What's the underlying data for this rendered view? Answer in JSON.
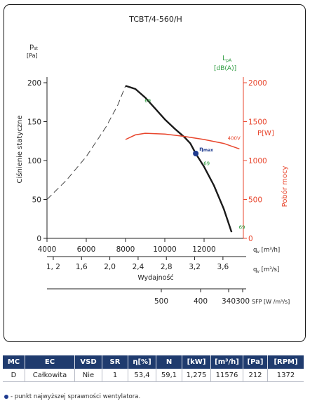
{
  "chart_data": {
    "type": "line",
    "title": "TCBT/4-560/H",
    "left_axis": {
      "unit_line1": "p",
      "unit_sub": "st",
      "unit_line2": "[Pa]",
      "label": "Ciśnienie statyczne",
      "ylim": [
        0,
        200
      ],
      "ticks": [
        0,
        50,
        100,
        150,
        200
      ],
      "tick_labels": [
        "0",
        "50",
        "100",
        "150",
        "200"
      ]
    },
    "right_axis": {
      "unit": "P[W]",
      "label": "Pobór mocy",
      "ylim": [
        0,
        2000
      ],
      "ticks": [
        0,
        500,
        1000,
        1500,
        2000
      ],
      "tick_labels": [
        "0",
        "500",
        "1000",
        "1500",
        "2000"
      ]
    },
    "x_axis_m3h": {
      "xlim": [
        4000,
        14000
      ],
      "ticks": [
        4000,
        6000,
        8000,
        10000,
        12000
      ],
      "tick_labels": [
        "4000",
        "6000",
        "8000",
        "10000",
        "12000"
      ],
      "unit_q": "q",
      "unit_sub": "v",
      "unit_rest": " [m³/h]"
    },
    "x_axis_m3s": {
      "ticks": [
        1.2,
        1.6,
        2.0,
        2.4,
        2.8,
        3.2,
        3.6
      ],
      "tick_labels": [
        "1, 2",
        "1,6",
        "2,0",
        "2,4",
        "2,8",
        "3,2",
        "3,6"
      ],
      "unit_q": "q",
      "unit_sub": "v",
      "unit_rest": " [m³/s]",
      "label": "Wydajność"
    },
    "sfp_axis": {
      "values": [
        500,
        400,
        340,
        300
      ],
      "tick_labels": [
        "500",
        "400",
        "340",
        "300"
      ],
      "label": "SFP [W /m³/s]"
    },
    "lpa_label_line1": "L",
    "lpa_label_sub": "pA",
    "lpa_label_line2": "[dB(A)]",
    "series": [
      {
        "name": "pressure",
        "x": [
          8000,
          8500,
          9000,
          9500,
          10000,
          10500,
          11000,
          11300,
          11576,
          12000,
          12500,
          13000,
          13400
        ],
        "y": [
          196,
          192,
          181,
          167,
          153,
          141,
          130,
          122,
          109,
          92,
          68,
          38,
          8
        ]
      },
      {
        "name": "stall",
        "x": [
          4000,
          5000,
          6000,
          7000,
          7600,
          8000
        ],
        "y": [
          50,
          75,
          105,
          143,
          171,
          196
        ]
      },
      {
        "name": "power",
        "x": [
          8000,
          8500,
          9000,
          10000,
          11000,
          12000,
          13000,
          13800
        ],
        "y": [
          1270,
          1330,
          1350,
          1340,
          1310,
          1270,
          1220,
          1150
        ]
      }
    ],
    "annotations": {
      "pressure_db": [
        "69",
        "69",
        "69"
      ],
      "power_label": "400V",
      "eta_label": "η",
      "eta_sub": "max",
      "eta_point": {
        "x": 11576,
        "y": 109
      }
    }
  },
  "table": {
    "headers": [
      "MC",
      "EC",
      "VSD",
      "SR",
      "η[%]",
      "N",
      "[kW]",
      "[m³/h]",
      "[Pa]",
      "[RPM]"
    ],
    "row": [
      "D",
      "Całkowita",
      "Nie",
      "1",
      "53,4",
      "59,1",
      "1,275",
      "11576",
      "212",
      "1372"
    ]
  },
  "footnote": "- punkt najwyższej sprawności wentylatora.",
  "colors": {
    "pressure": "#1a1a1a",
    "power": "#e8452c",
    "right_axis": "#e8452c",
    "lpa": "#2a9a3c",
    "eta_point": "#1f3b8f",
    "header_bg": "#1f3b6e"
  }
}
